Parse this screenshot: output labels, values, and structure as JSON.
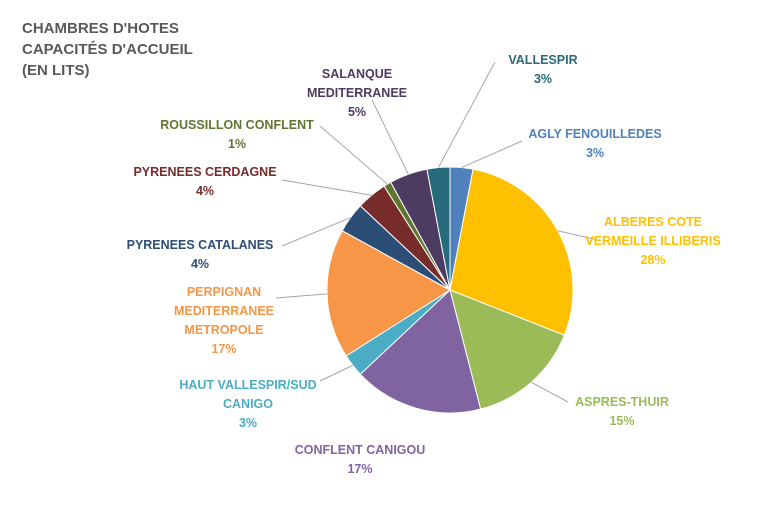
{
  "chart_data": {
    "type": "pie",
    "title": "CHAMBRES D'HOTES CAPACITÉS D'ACCUEIL (EN LITS)",
    "categories": [
      "AGLY FENOUILLEDES",
      "ALBERES COTE VERMEILLE ILLIBERIS",
      "ASPRES-THUIR",
      "CONFLENT CANIGOU",
      "HAUT VALLESPIR/SUD CANIGO",
      "PERPIGNAN MEDITERRANEE METROPOLE",
      "PYRENEES CATALANES",
      "PYRENEES CERDAGNE",
      "ROUSSILLON CONFLENT",
      "SALANQUE MEDITERRANEE",
      "VALLESPIR"
    ],
    "values": [
      3,
      28,
      15,
      17,
      3,
      17,
      4,
      4,
      1,
      5,
      3
    ],
    "value_labels": [
      "3%",
      "28%",
      "15%",
      "17%",
      "3%",
      "17%",
      "4%",
      "4%",
      "1%",
      "5%",
      "3%"
    ],
    "colors": [
      "#4F81BD",
      "#FFC000",
      "#9BBB59",
      "#8064A2",
      "#4BACC6",
      "#F79646",
      "#2C4D75",
      "#772C2A",
      "#5F7530",
      "#4D3B62",
      "#276A7C"
    ]
  }
}
